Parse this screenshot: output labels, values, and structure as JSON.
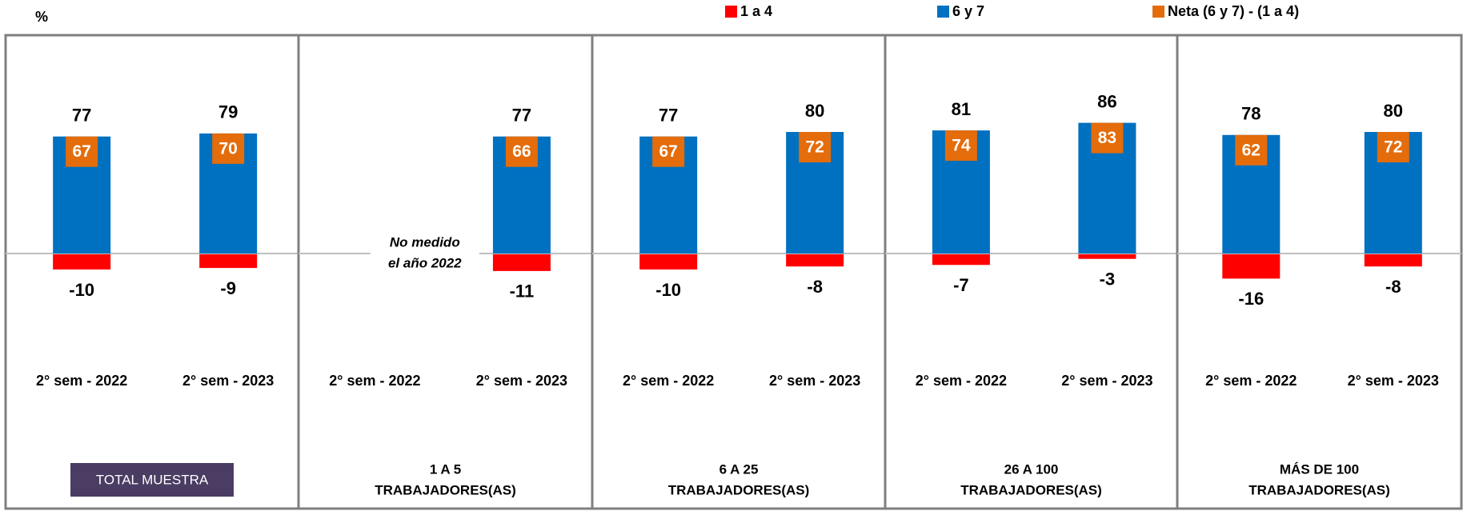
{
  "chart_data": {
    "type": "bar",
    "ylabel": "%",
    "ylim": [
      -60,
      100
    ],
    "legend": [
      {
        "name": "1 a 4",
        "color": "#ff0000"
      },
      {
        "name": "6 y 7",
        "color": "#0070c0"
      },
      {
        "name": "Neta (6 y 7) - (1 a 4)",
        "color": "#e46c0a"
      }
    ],
    "panels": [
      {
        "title": [
          "TOTAL MUESTRA"
        ],
        "highlight": "#4b3c63",
        "categories": [
          "2° sem - 2022",
          "2° sem - 2023"
        ],
        "series": [
          {
            "values": [
              -10,
              -9
            ]
          },
          {
            "values": [
              77,
              79
            ]
          },
          {
            "values": [
              67,
              70
            ]
          }
        ]
      },
      {
        "title": [
          "1 A 5",
          "TRABAJADORES(AS)"
        ],
        "annotation": [
          "No medido",
          "el año 2022"
        ],
        "categories": [
          "2° sem - 2022",
          "2° sem - 2023"
        ],
        "series": [
          {
            "values": [
              null,
              -11
            ]
          },
          {
            "values": [
              null,
              77
            ]
          },
          {
            "values": [
              null,
              66
            ]
          }
        ]
      },
      {
        "title": [
          "6 A 25",
          "TRABAJADORES(AS)"
        ],
        "categories": [
          "2° sem - 2022",
          "2° sem - 2023"
        ],
        "series": [
          {
            "values": [
              -10,
              -8
            ]
          },
          {
            "values": [
              77,
              80
            ]
          },
          {
            "values": [
              67,
              72
            ]
          }
        ]
      },
      {
        "title": [
          "26 A 100",
          "TRABAJADORES(AS)"
        ],
        "categories": [
          "2° sem - 2022",
          "2° sem - 2023"
        ],
        "series": [
          {
            "values": [
              -7,
              -3
            ]
          },
          {
            "values": [
              81,
              86
            ]
          },
          {
            "values": [
              74,
              83
            ]
          }
        ]
      },
      {
        "title": [
          "MÁS DE 100",
          "TRABAJADORES(AS)"
        ],
        "categories": [
          "2° sem - 2022",
          "2° sem - 2023"
        ],
        "series": [
          {
            "values": [
              -16,
              -8
            ]
          },
          {
            "values": [
              78,
              80
            ]
          },
          {
            "values": [
              62,
              72
            ]
          }
        ]
      }
    ]
  }
}
